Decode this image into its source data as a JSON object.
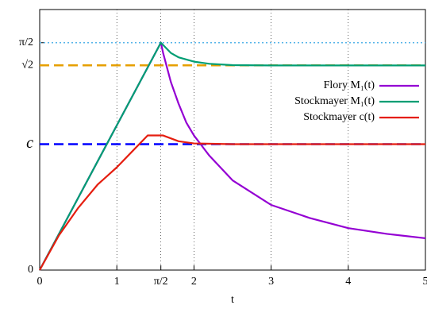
{
  "chart_data": {
    "type": "line",
    "x_label": "t",
    "xlim": [
      0,
      5
    ],
    "ylim": [
      0,
      1.8
    ],
    "xticks": [
      0,
      1,
      {
        "value": 1.5708,
        "label": "π/2"
      },
      2,
      3,
      4,
      5
    ],
    "yticks": [
      0,
      {
        "value": 0.87,
        "label": "c"
      },
      {
        "value": 1.4142,
        "label": "√2"
      },
      {
        "value": 1.5708,
        "label": "π/2"
      }
    ],
    "grid": true,
    "legend": "upper right",
    "reference_lines": [
      {
        "value": 1.5708,
        "color": "#56b4e9",
        "style": "dotted"
      },
      {
        "value": 1.4142,
        "color": "#e69f00",
        "style": "dashed"
      },
      {
        "value": 0.87,
        "color": "#0000ff",
        "style": "dashed"
      }
    ],
    "series": [
      {
        "name": "Flory M₁(t)",
        "color": "#9400d3",
        "x": [
          0,
          1.5708,
          1.6,
          1.7,
          1.8,
          1.9,
          2.0,
          2.2,
          2.5,
          3.0,
          3.5,
          4.0,
          4.5,
          5.0
        ],
        "values": [
          0,
          1.5708,
          1.5,
          1.3,
          1.15,
          1.02,
          0.93,
          0.79,
          0.62,
          0.45,
          0.36,
          0.29,
          0.25,
          0.22
        ]
      },
      {
        "name": "Stockmayer M₁(t)",
        "color": "#009e73",
        "x": [
          0,
          1.5708,
          1.7,
          1.8,
          2.0,
          2.2,
          2.5,
          3.0,
          4.0,
          5.0
        ],
        "values": [
          0,
          1.5708,
          1.5,
          1.47,
          1.44,
          1.425,
          1.416,
          1.414,
          1.414,
          1.414
        ]
      },
      {
        "name": "Stockmayer c(t)",
        "color": "#e51e10",
        "x": [
          0,
          0.25,
          0.5,
          0.75,
          1.0,
          1.2,
          1.4,
          1.6,
          1.8,
          2.0,
          2.5,
          3.0,
          4.0,
          5.0
        ],
        "values": [
          0,
          0.24,
          0.43,
          0.59,
          0.71,
          0.82,
          0.93,
          0.93,
          0.89,
          0.875,
          0.87,
          0.87,
          0.87,
          0.87
        ]
      }
    ]
  }
}
